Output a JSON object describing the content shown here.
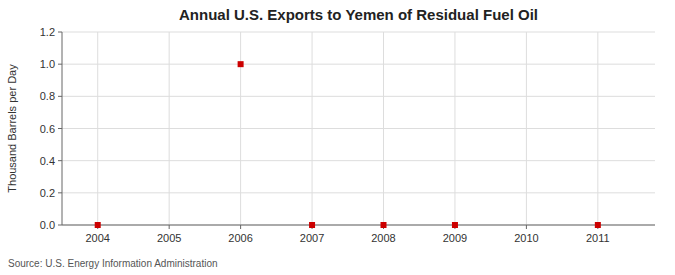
{
  "chart_data": {
    "type": "scatter",
    "title": "Annual U.S. Exports to Yemen of Residual Fuel Oil",
    "ylabel": "Thousand Barrels per Day",
    "annotation": "Source: U.S. Energy Information Administration",
    "x": [
      2004,
      2006,
      2007,
      2008,
      2009,
      2011
    ],
    "values": [
      0.0,
      1.0,
      0.0,
      0.0,
      0.0,
      0.0
    ],
    "color": "#cc0000",
    "marker": "square",
    "xlim": [
      2003.5,
      2011.8
    ],
    "ylim": [
      0.0,
      1.2
    ],
    "xticks": [
      2004,
      2005,
      2006,
      2007,
      2008,
      2009,
      2010,
      2011
    ],
    "yticks": [
      {
        "value": 0.0,
        "label": "0.0"
      },
      0.2,
      0.4,
      0.6,
      0.8,
      {
        "value": 1.0,
        "label": "1.0"
      },
      1.2
    ],
    "grid": true
  }
}
